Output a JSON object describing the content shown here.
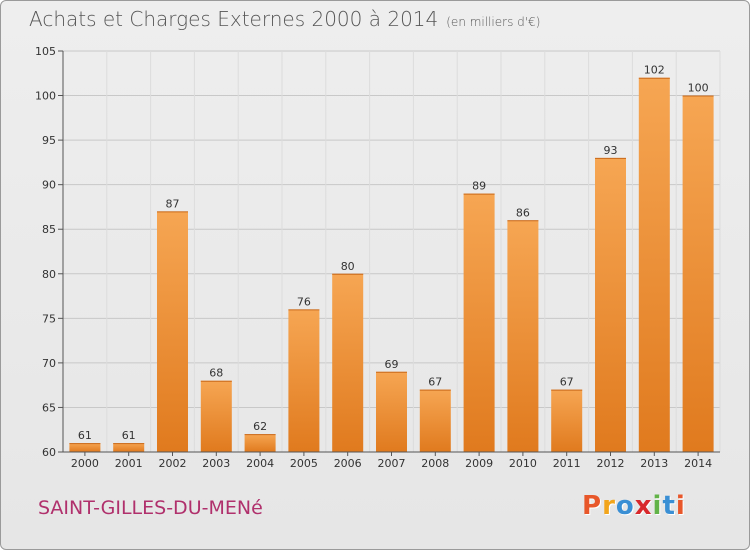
{
  "header": {
    "title": "Achats et Charges Externes 2000 à 2014",
    "subtitle": "(en milliers d'€)"
  },
  "footer": {
    "town": "SAINT-GILLES-DU-MENé",
    "logo": "Proxiti",
    "logo_colors": [
      "#e8572a",
      "#f2a51b",
      "#3a8fd4",
      "#d8282b",
      "#62b348",
      "#3a8fd4",
      "#e8572a"
    ]
  },
  "chart_data": {
    "type": "bar",
    "title": "Achats et Charges Externes 2000 à 2014",
    "subtitle": "(en milliers d'€)",
    "categories": [
      "2000",
      "2001",
      "2002",
      "2003",
      "2004",
      "2005",
      "2006",
      "2007",
      "2008",
      "2009",
      "2010",
      "2011",
      "2012",
      "2013",
      "2014"
    ],
    "values": [
      61,
      61,
      87,
      68,
      62,
      76,
      80,
      69,
      67,
      89,
      86,
      67,
      93,
      102,
      100
    ],
    "ylim": [
      60,
      105
    ],
    "yticks": [
      60,
      65,
      70,
      75,
      80,
      85,
      90,
      95,
      100,
      105
    ],
    "grid": true,
    "colors": {
      "bar_top": "#f6a653",
      "bar_bottom": "#e07a1e",
      "grid": "#c8c8c8"
    }
  }
}
